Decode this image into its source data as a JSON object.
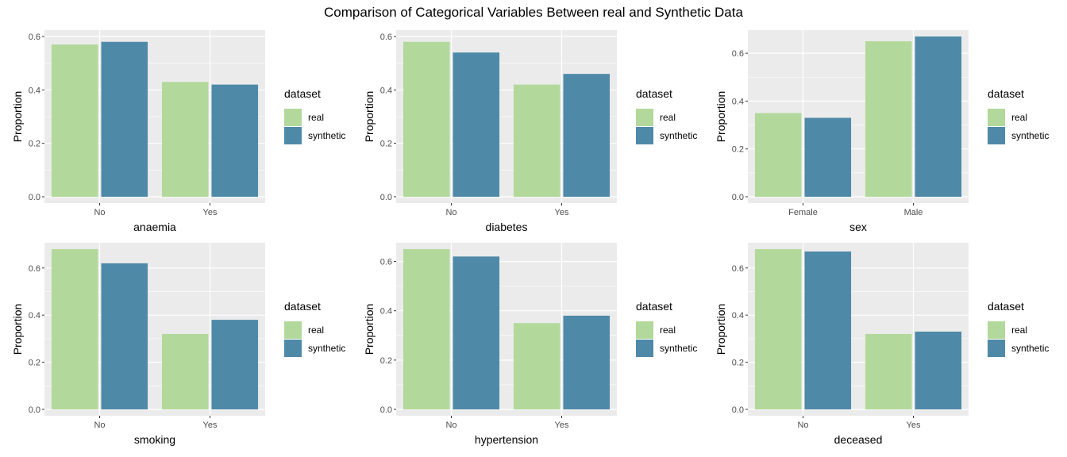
{
  "title": "Comparison of Categorical Variables Between real and Synthetic Data",
  "colors": {
    "real": "#b2d99b",
    "synthetic": "#4f89a8",
    "panel_bg": "#ebebeb",
    "grid": "#ffffff"
  },
  "chart_data": [
    {
      "type": "bar",
      "title": "",
      "xlabel": "anaemia",
      "ylabel": "Proportion",
      "categories": [
        "No",
        "Yes"
      ],
      "ylim": [
        0,
        0.6
      ],
      "yticks": [
        "0.0",
        "0.2",
        "0.4",
        "0.6"
      ],
      "legend_title": "dataset",
      "legend_position": "right",
      "series": [
        {
          "name": "real",
          "values": [
            0.57,
            0.43
          ]
        },
        {
          "name": "synthetic",
          "values": [
            0.58,
            0.42
          ]
        }
      ]
    },
    {
      "type": "bar",
      "title": "",
      "xlabel": "diabetes",
      "ylabel": "Proportion",
      "categories": [
        "No",
        "Yes"
      ],
      "ylim": [
        0,
        0.6
      ],
      "yticks": [
        "0.0",
        "0.2",
        "0.4",
        "0.6"
      ],
      "legend_title": "dataset",
      "legend_position": "right",
      "series": [
        {
          "name": "real",
          "values": [
            0.58,
            0.42
          ]
        },
        {
          "name": "synthetic",
          "values": [
            0.54,
            0.46
          ]
        }
      ]
    },
    {
      "type": "bar",
      "title": "",
      "xlabel": "sex",
      "ylabel": "Proportion",
      "categories": [
        "Female",
        "Male"
      ],
      "ylim": [
        0,
        0.67
      ],
      "yticks": [
        "0.0",
        "0.2",
        "0.4",
        "0.6"
      ],
      "legend_title": "dataset",
      "legend_position": "right",
      "series": [
        {
          "name": "real",
          "values": [
            0.35,
            0.65
          ]
        },
        {
          "name": "synthetic",
          "values": [
            0.33,
            0.67
          ]
        }
      ]
    },
    {
      "type": "bar",
      "title": "",
      "xlabel": "smoking",
      "ylabel": "Proportion",
      "categories": [
        "No",
        "Yes"
      ],
      "ylim": [
        0,
        0.68
      ],
      "yticks": [
        "0.0",
        "0.2",
        "0.4",
        "0.6"
      ],
      "legend_title": "dataset",
      "legend_position": "right",
      "series": [
        {
          "name": "real",
          "values": [
            0.68,
            0.32
          ]
        },
        {
          "name": "synthetic",
          "values": [
            0.62,
            0.38
          ]
        }
      ]
    },
    {
      "type": "bar",
      "title": "",
      "xlabel": "hypertension",
      "ylabel": "Proportion",
      "categories": [
        "No",
        "Yes"
      ],
      "ylim": [
        0,
        0.65
      ],
      "yticks": [
        "0.0",
        "0.2",
        "0.4",
        "0.6"
      ],
      "legend_title": "dataset",
      "legend_position": "right",
      "series": [
        {
          "name": "real",
          "values": [
            0.65,
            0.35
          ]
        },
        {
          "name": "synthetic",
          "values": [
            0.62,
            0.38
          ]
        }
      ]
    },
    {
      "type": "bar",
      "title": "",
      "xlabel": "deceased",
      "ylabel": "Proportion",
      "categories": [
        "No",
        "Yes"
      ],
      "ylim": [
        0,
        0.68
      ],
      "yticks": [
        "0.0",
        "0.2",
        "0.4",
        "0.6"
      ],
      "legend_title": "dataset",
      "legend_position": "right",
      "series": [
        {
          "name": "real",
          "values": [
            0.68,
            0.32
          ]
        },
        {
          "name": "synthetic",
          "values": [
            0.67,
            0.33
          ]
        }
      ]
    }
  ]
}
